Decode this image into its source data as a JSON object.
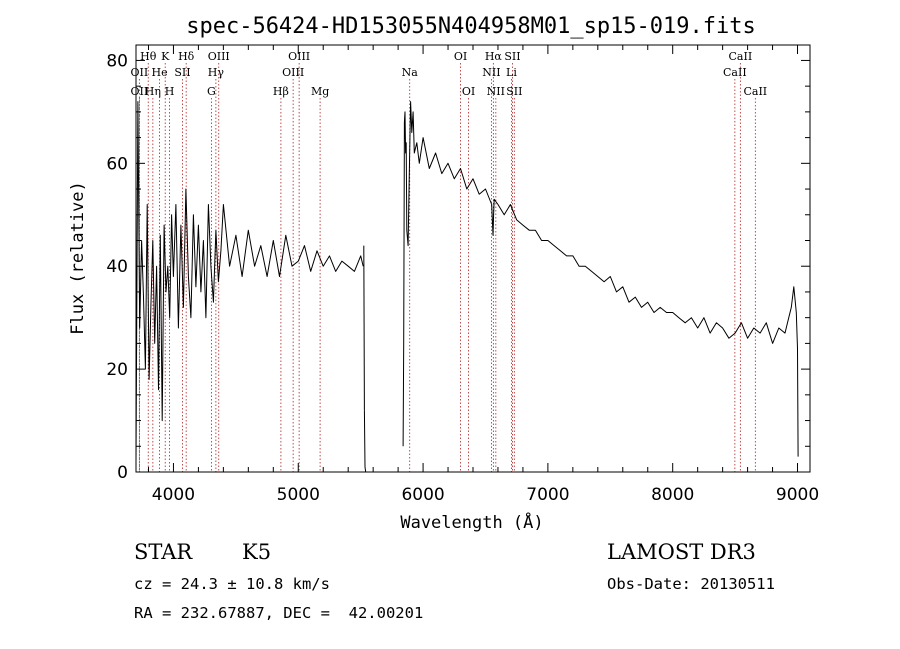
{
  "chart_data": {
    "type": "line",
    "title": "spec-56424-HD153055N404958M01_sp15-019.fits",
    "xlabel": "Wavelength (Å)",
    "ylabel": "Flux (relative)",
    "xlim": [
      3700,
      9100
    ],
    "ylim": [
      0,
      83
    ],
    "xticks": [
      4000,
      5000,
      6000,
      7000,
      8000,
      9000
    ],
    "xtick_labels": [
      "4000",
      "5000",
      "6000",
      "7000",
      "8000",
      "9000"
    ],
    "yticks": [
      0,
      20,
      40,
      60,
      80
    ],
    "ytick_labels": [
      "0",
      "20",
      "40",
      "60",
      "80"
    ],
    "grid": false,
    "series": [
      {
        "name": "Flux",
        "segments": [
          {
            "x": [
              3700,
              3715,
              3730,
              3745,
              3760,
              3775,
              3790,
              3805,
              3820,
              3835,
              3850,
              3865,
              3880,
              3895,
              3910,
              3925,
              3940,
              3955,
              3970,
              3985,
              4000,
              4020,
              4040,
              4060,
              4080,
              4100,
              4120,
              4140,
              4160,
              4180,
              4200,
              4220,
              4240,
              4260,
              4280,
              4300,
              4320,
              4340,
              4360,
              4380,
              4400,
              4450,
              4500,
              4550,
              4600,
              4650,
              4700,
              4750,
              4800,
              4850,
              4900,
              4950,
              5000,
              5050,
              5100,
              5150,
              5200,
              5250,
              5300,
              5350,
              5400,
              5450,
              5500,
              5520
            ],
            "y": [
              2,
              72,
              28,
              45,
              34,
              20,
              52,
              18,
              33,
              45,
              25,
              40,
              16,
              46,
              10,
              48,
              35,
              40,
              30,
              50,
              38,
              52,
              28,
              48,
              32,
              55,
              38,
              30,
              50,
              36,
              48,
              35,
              45,
              30,
              52,
              40,
              33,
              47,
              37,
              43,
              52,
              40,
              46,
              38,
              47,
              40,
              44,
              38,
              45,
              38,
              46,
              40,
              41,
              44,
              39,
              43,
              40,
              42,
              39,
              41,
              40,
              39,
              42,
              40
            ]
          },
          {
            "x": [
              5525,
              5530
            ],
            "y": [
              44,
              12
            ]
          },
          {
            "x": [
              5530,
              5535,
              5540
            ],
            "y": [
              12,
              1,
              0
            ]
          },
          {
            "x": [
              5840,
              5845,
              5850,
              5855,
              5860,
              5865,
              5870,
              5880,
              5890,
              5900,
              5910,
              5920,
              5930,
              5950,
              5970,
              6000,
              6050,
              6100,
              6150,
              6200,
              6250,
              6300,
              6350,
              6400,
              6450,
              6500,
              6550,
              6560,
              6565,
              6570,
              6600,
              6650,
              6700,
              6750,
              6800,
              6850,
              6900,
              6950,
              7000,
              7050,
              7100,
              7150,
              7200,
              7250,
              7300,
              7350,
              7400,
              7450,
              7500,
              7550,
              7600,
              7650,
              7700,
              7750,
              7800,
              7850,
              7900,
              7950,
              8000,
              8050,
              8100,
              8150,
              8200,
              8250,
              8300,
              8350,
              8400,
              8450,
              8500,
              8550,
              8600,
              8650,
              8700,
              8750,
              8800,
              8850,
              8900,
              8920,
              8950,
              8970,
              8990,
              9000
            ],
            "y": [
              5,
              25,
              68,
              70,
              62,
              64,
              47,
              44,
              58,
              72,
              66,
              70,
              62,
              64,
              60,
              65,
              59,
              62,
              58,
              60,
              57,
              59,
              55,
              57,
              54,
              55,
              52,
              46,
              50,
              53,
              52,
              50,
              52,
              49,
              48,
              47,
              47,
              45,
              45,
              44,
              43,
              42,
              42,
              40,
              40,
              39,
              38,
              37,
              38,
              35,
              36,
              33,
              34,
              32,
              33,
              31,
              32,
              31,
              31,
              30,
              29,
              30,
              28,
              30,
              27,
              29,
              28,
              26,
              27,
              29,
              26,
              28,
              27,
              29,
              25,
              28,
              27,
              29,
              32,
              36,
              31,
              24
            ]
          },
          {
            "x": [
              9000,
              9005
            ],
            "y": [
              24,
              3
            ]
          }
        ]
      }
    ],
    "lines": [
      {
        "label": "Hθ",
        "x": 3798,
        "row": 1
      },
      {
        "label": "OII",
        "x": 3727,
        "row": 2
      },
      {
        "label": "OII",
        "x": 3727,
        "row": 3
      },
      {
        "label": "He",
        "x": 3889,
        "row": 2
      },
      {
        "label": "Hη",
        "x": 3835,
        "row": 3
      },
      {
        "label": "K",
        "x": 3934,
        "row": 1
      },
      {
        "label": "H",
        "x": 3969,
        "row": 3
      },
      {
        "label": "SII",
        "x": 4072,
        "row": 2
      },
      {
        "label": "Hδ",
        "x": 4102,
        "row": 1
      },
      {
        "label": "OIII",
        "x": 4363,
        "row": 1
      },
      {
        "label": "Hγ",
        "x": 4340,
        "row": 2
      },
      {
        "label": "G",
        "x": 4304,
        "row": 3
      },
      {
        "label": "Hβ",
        "x": 4861,
        "row": 3
      },
      {
        "label": "OIII",
        "x": 5007,
        "row": 1
      },
      {
        "label": "OIII",
        "x": 4959,
        "row": 2
      },
      {
        "label": "Mg",
        "x": 5175,
        "row": 3
      },
      {
        "label": "Na",
        "x": 5893,
        "row": 2
      },
      {
        "label": "OI",
        "x": 6300,
        "row": 1
      },
      {
        "label": "OI",
        "x": 6364,
        "row": 3
      },
      {
        "label": "Hα",
        "x": 6563,
        "row": 1
      },
      {
        "label": "NII",
        "x": 6548,
        "row": 2
      },
      {
        "label": "NII",
        "x": 6583,
        "row": 3
      },
      {
        "label": "SII",
        "x": 6716,
        "row": 1
      },
      {
        "label": "Li",
        "x": 6708,
        "row": 2
      },
      {
        "label": "SII",
        "x": 6731,
        "row": 3
      },
      {
        "label": "CaII",
        "x": 8542,
        "row": 1
      },
      {
        "label": "CaII",
        "x": 8498,
        "row": 2
      },
      {
        "label": "CaII",
        "x": 8662,
        "row": 3
      }
    ],
    "line_color": "#b22222"
  },
  "info": {
    "class": "STAR",
    "subclass": "K5",
    "survey": "LAMOST DR3",
    "cz": "cz = 24.3 ± 10.8 km/s",
    "obs_date": "Obs-Date: 20130511",
    "radec": "RA = 232.67887, DEC =  42.00201"
  }
}
